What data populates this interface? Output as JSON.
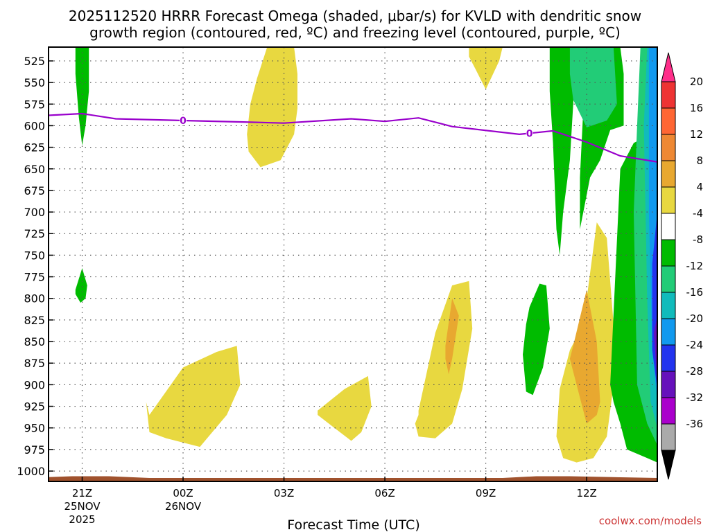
{
  "chart_data": {
    "type": "contour-time-height",
    "title_line1": "2025112520 HRRR Forecast Omega (shaded, μbar/s) for KVLD with dendritic snow",
    "title_line2": "growth region (contoured, red, ºC) and freezing level (contoured, purple, ºC)",
    "xlabel": "Forecast Time (UTC)",
    "credit": "coolwx.com/models",
    "x_range_hours": [
      -1.0,
      17.1
    ],
    "x_ticks": [
      {
        "hour": 0,
        "label": "21Z",
        "sub1": "25NOV",
        "sub2": "2025"
      },
      {
        "hour": 3,
        "label": "00Z",
        "sub1": "26NOV",
        "sub2": ""
      },
      {
        "hour": 6,
        "label": "03Z",
        "sub1": "",
        "sub2": ""
      },
      {
        "hour": 9,
        "label": "06Z",
        "sub1": "",
        "sub2": ""
      },
      {
        "hour": 12,
        "label": "09Z",
        "sub1": "",
        "sub2": ""
      },
      {
        "hour": 15,
        "label": "12Z",
        "sub1": "",
        "sub2": ""
      }
    ],
    "y_ticks_hPa": [
      525,
      550,
      575,
      600,
      625,
      650,
      675,
      700,
      725,
      750,
      775,
      800,
      825,
      850,
      875,
      900,
      925,
      950,
      975,
      1000
    ],
    "y_range_hPa": [
      509,
      1012
    ],
    "colorbar": {
      "labels": [
        "20",
        "16",
        "12",
        "8",
        "4",
        "-4",
        "-8",
        "-12",
        "-16",
        "-20",
        "-24",
        "-28",
        "-32",
        "-36"
      ],
      "colors": [
        "#ff2e8a",
        "#ee3333",
        "#ff6633",
        "#ee8833",
        "#e8a830",
        "#e8d840",
        "#ffffff",
        "#00bb00",
        "#22cc77",
        "#11bbbb",
        "#1199ee",
        "#2233ee",
        "#6611bb",
        "#aa00cc",
        "#aaaaaa",
        "#000000"
      ]
    },
    "freezing_level": {
      "label": "0",
      "hours": [
        -1.0,
        0,
        1,
        3,
        5,
        6,
        8,
        9,
        10,
        11,
        13,
        14,
        15,
        16,
        17.1
      ],
      "pressures_hPa": [
        588,
        586,
        592,
        594,
        596,
        597,
        592,
        595,
        591,
        601,
        610,
        606,
        619,
        635,
        642
      ]
    },
    "omega_areas": [
      {
        "name": "green-21z-upper",
        "value_class": "-4 to -8",
        "color": "#00bb00",
        "hours": [
          -0.2,
          0.2,
          0.2,
          0.1,
          0.0,
          -0.1,
          -0.2
        ],
        "pressures_hPa": [
          509,
          509,
          560,
          600,
          623,
          590,
          540
        ]
      },
      {
        "name": "green-21z-lower",
        "value_class": "-4 to -8",
        "color": "#00bb00",
        "hours": [
          -0.2,
          0.0,
          0.15,
          0.1,
          -0.05,
          -0.2
        ],
        "pressures_hPa": [
          790,
          765,
          785,
          800,
          805,
          795
        ]
      },
      {
        "name": "yellow-03z",
        "value_class": "4 to 8",
        "color": "#e8d840",
        "hours": [
          5.5,
          6.3,
          6.4,
          6.4,
          6.3,
          5.9,
          5.3,
          4.95,
          4.9,
          5.0,
          5.2
        ],
        "pressures_hPa": [
          509,
          509,
          540,
          580,
          610,
          640,
          648,
          630,
          610,
          575,
          545
        ]
      },
      {
        "name": "yellow-00z-low",
        "value_class": "4 to 8",
        "color": "#e8d840",
        "hours": [
          2.0,
          3.0,
          4.0,
          4.6,
          4.7,
          4.3,
          3.5,
          2.5,
          2.0,
          1.9
        ],
        "pressures_hPa": [
          935,
          880,
          862,
          855,
          900,
          935,
          972,
          962,
          955,
          920
        ]
      },
      {
        "name": "yellow-0530z",
        "value_class": "4 to 8",
        "color": "#e8d840",
        "hours": [
          7.0,
          7.8,
          8.5,
          8.6,
          8.3,
          8.0,
          7.5,
          7.0
        ],
        "pressures_hPa": [
          930,
          905,
          890,
          925,
          955,
          965,
          950,
          935
        ]
      },
      {
        "name": "yellow-08z",
        "value_class": "4 to 8",
        "color": "#e8d840",
        "hours": [
          10.0,
          10.5,
          11.0,
          11.5,
          11.6,
          11.3,
          11.0,
          10.5,
          10.0,
          9.9,
          10.0
        ],
        "pressures_hPa": [
          930,
          840,
          785,
          780,
          835,
          905,
          945,
          962,
          960,
          945,
          935
        ]
      },
      {
        "name": "orange-08z",
        "value_class": "8 to 12",
        "color": "#e8a830",
        "hours": [
          10.8,
          11.0,
          11.2,
          11.0,
          10.9,
          10.8
        ],
        "pressures_hPa": [
          855,
          800,
          820,
          870,
          888,
          870
        ]
      },
      {
        "name": "yellow-12z",
        "value_class": "4 to 8",
        "color": "#e8d840",
        "hours": [
          14.9,
          15.3,
          15.6,
          15.8,
          15.8,
          15.6,
          15.2,
          14.7,
          14.3,
          14.1,
          14.2,
          14.5
        ],
        "pressures_hPa": [
          830,
          712,
          730,
          830,
          900,
          960,
          985,
          990,
          985,
          960,
          905,
          860
        ]
      },
      {
        "name": "orange-12z",
        "value_class": "8 to 12",
        "color": "#e8a830",
        "hours": [
          14.6,
          15.0,
          15.3,
          15.4,
          15.3,
          15.0,
          14.7,
          14.5
        ],
        "pressures_hPa": [
          855,
          790,
          850,
          920,
          935,
          945,
          900,
          870
        ]
      },
      {
        "name": "yellow-09z-top",
        "value_class": "4 to 8",
        "color": "#e8d840",
        "hours": [
          11.5,
          12.5,
          12.4,
          12.0,
          11.7,
          11.5
        ],
        "pressures_hPa": [
          509,
          509,
          525,
          558,
          535,
          520
        ]
      },
      {
        "name": "green-10z",
        "value_class": "-4 to -8",
        "color": "#00bb00",
        "hours": [
          13.3,
          13.6,
          13.8,
          13.9,
          13.7,
          13.4,
          13.2,
          13.1,
          13.2
        ],
        "pressures_hPa": [
          810,
          783,
          785,
          835,
          880,
          912,
          908,
          865,
          830
        ]
      },
      {
        "name": "green-right-main",
        "value_class": "-4 to -8",
        "color": "#00bb00",
        "hours": [
          13.9,
          17.1,
          17.1,
          16.8,
          16.2,
          16.0,
          15.8,
          15.7,
          16.0,
          16.4,
          16.8,
          17.1,
          17.1,
          16.9,
          16.3,
          15.9,
          15.5,
          15.2,
          15.0,
          14.8,
          14.7,
          14.5,
          14.3,
          14.2,
          14.1,
          14.0,
          13.9
        ],
        "pressures_hPa": [
          509,
          509,
          990,
          985,
          975,
          945,
          920,
          900,
          650,
          620,
          612,
          608,
          509,
          509,
          509,
          509,
          509,
          509,
          509,
          509,
          509,
          640,
          700,
          750,
          720,
          620,
          560
        ]
      },
      {
        "name": "green-right-strip",
        "value_class": "-4 to -8",
        "color": "#00bb00",
        "hours": [
          15.0,
          16.0,
          16.1,
          16.1,
          15.7,
          15.4,
          15.1,
          14.9,
          14.8,
          14.8,
          14.9
        ],
        "pressures_hPa": [
          509,
          509,
          540,
          600,
          605,
          640,
          660,
          700,
          720,
          660,
          580
        ]
      },
      {
        "name": "teal-11z",
        "value_class": "-8 to -12",
        "color": "#22cc77",
        "hours": [
          14.5,
          15.8,
          15.9,
          15.6,
          15.0,
          14.6,
          14.5
        ],
        "pressures_hPa": [
          509,
          509,
          575,
          594,
          602,
          570,
          540
        ]
      },
      {
        "name": "teal-right",
        "value_class": "-8 to -12",
        "color": "#22cc77",
        "hours": [
          16.6,
          17.1,
          17.1,
          16.8,
          16.5,
          16.4,
          16.5
        ],
        "pressures_hPa": [
          509,
          509,
          970,
          945,
          900,
          700,
          600
        ]
      },
      {
        "name": "cyan-right",
        "value_class": "-12 to -16",
        "color": "#11bbbb",
        "hours": [
          16.8,
          17.1,
          17.1,
          16.9,
          16.8,
          16.7
        ],
        "pressures_hPa": [
          509,
          509,
          950,
          920,
          800,
          600
        ]
      },
      {
        "name": "lightblue-right",
        "value_class": "-16 to -20",
        "color": "#1199ee",
        "hours": [
          16.85,
          17.1,
          17.1,
          16.95,
          16.85
        ],
        "pressures_hPa": [
          509,
          509,
          920,
          860,
          700
        ]
      },
      {
        "name": "blue-right",
        "value_class": "-20 to -24",
        "color": "#2233ee",
        "hours": [
          16.95,
          17.1,
          17.1,
          16.95
        ],
        "pressures_hPa": [
          760,
          700,
          905,
          860
        ]
      },
      {
        "name": "violet-right",
        "value_class": "-24 to -28",
        "color": "#6611bb",
        "hours": [
          17.0,
          17.1,
          17.1
        ],
        "pressures_hPa": [
          840,
          820,
          900
        ]
      }
    ],
    "terrain": {
      "color": "#a0522d",
      "hours": [
        -1.0,
        -0.3,
        0.8,
        2.0,
        12.5,
        13.5,
        14.5,
        17.1
      ],
      "pressures_hPa": [
        1007,
        1006,
        1006,
        1008,
        1008,
        1006,
        1006,
        1008
      ]
    }
  }
}
